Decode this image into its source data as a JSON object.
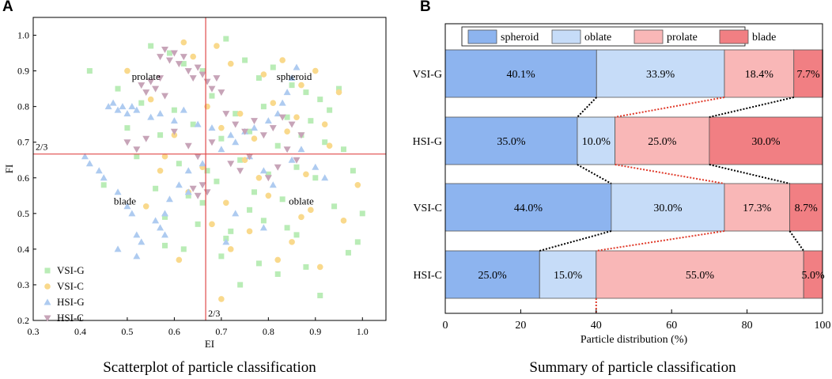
{
  "panels": {
    "a_letter": "A",
    "b_letter": "B"
  },
  "captions": {
    "a": "Scatterplot of particle classification",
    "b": "Summary of particle classification"
  },
  "colors": {
    "vsi_g": "#b9ecb6",
    "vsi_c": "#f9d98c",
    "hsi_g": "#aecbf0",
    "hsi_c": "#c7a4b8",
    "spheroid": "#8db4ef",
    "oblate": "#c6dcf8",
    "prolate": "#f9b7b7",
    "blade": "#f17f83",
    "divider": "#e04a4a"
  },
  "chart_data": [
    {
      "type": "scatter",
      "title": "Scatterplot of particle classification",
      "xlabel": "EI",
      "ylabel": "FI",
      "xlim": [
        0.3,
        1.05
      ],
      "ylim": [
        0.2,
        1.05
      ],
      "xticks": [
        "0.3",
        "0.4",
        "0.5",
        "0.6",
        "0.7",
        "0.8",
        "0.9",
        "1.0"
      ],
      "yticks": [
        "0.2",
        "0.3",
        "0.4",
        "0.5",
        "0.6",
        "0.7",
        "0.8",
        "0.9",
        "1.0"
      ],
      "threshold_x": 0.6667,
      "threshold_y": 0.6667,
      "threshold_x_label": "2/3",
      "threshold_y_label": "2/3",
      "regions": [
        {
          "name": "prolate",
          "x": 0.54,
          "y": 0.875
        },
        {
          "name": "spheroid",
          "x": 0.855,
          "y": 0.875
        },
        {
          "name": "blade",
          "x": 0.495,
          "y": 0.525
        },
        {
          "name": "oblate",
          "x": 0.87,
          "y": 0.525
        }
      ],
      "series": [
        {
          "name": "VSI-G",
          "marker": "square",
          "x": [
            0.55,
            0.59,
            0.62,
            0.66,
            0.71,
            0.75,
            0.78,
            0.81,
            0.85,
            0.88,
            0.91,
            0.95,
            0.53,
            0.6,
            0.68,
            0.73,
            0.79,
            0.84,
            0.89,
            0.93,
            0.5,
            0.57,
            0.64,
            0.7,
            0.76,
            0.82,
            0.87,
            0.92,
            0.96,
            0.52,
            0.61,
            0.67,
            0.74,
            0.8,
            0.86,
            0.9,
            0.98,
            0.45,
            0.56,
            0.63,
            0.69,
            0.77,
            0.83,
            0.94,
            1.0,
            0.58,
            0.65,
            0.72,
            0.79,
            0.86,
            0.99,
            0.62,
            0.7,
            0.78,
            0.88,
            0.58,
            0.71,
            0.84,
            0.42,
            0.48,
            0.74,
            0.82,
            0.91,
            0.66,
            0.76,
            0.97
          ],
          "y": [
            0.97,
            0.95,
            0.92,
            0.9,
            0.99,
            0.93,
            0.88,
            0.91,
            0.86,
            0.84,
            0.82,
            0.85,
            0.81,
            0.79,
            0.83,
            0.78,
            0.8,
            0.77,
            0.76,
            0.79,
            0.74,
            0.72,
            0.75,
            0.71,
            0.73,
            0.69,
            0.72,
            0.7,
            0.68,
            0.66,
            0.64,
            0.62,
            0.65,
            0.61,
            0.63,
            0.6,
            0.62,
            0.58,
            0.57,
            0.55,
            0.59,
            0.56,
            0.54,
            0.52,
            0.5,
            0.49,
            0.47,
            0.45,
            0.48,
            0.44,
            0.42,
            0.4,
            0.38,
            0.36,
            0.35,
            0.41,
            0.43,
            0.46,
            0.9,
            0.85,
            0.3,
            0.33,
            0.27,
            0.53,
            0.51,
            0.39
          ]
        },
        {
          "name": "VSI-C",
          "marker": "circle",
          "x": [
            0.5,
            0.62,
            0.64,
            0.69,
            0.72,
            0.79,
            0.83,
            0.87,
            0.9,
            0.95,
            0.55,
            0.67,
            0.74,
            0.81,
            0.86,
            0.92,
            0.6,
            0.7,
            0.77,
            0.84,
            0.93,
            0.58,
            0.66,
            0.75,
            0.88,
            0.99,
            0.63,
            0.71,
            0.8,
            0.89,
            0.96,
            0.54,
            0.68,
            0.76,
            0.85,
            0.61,
            0.72,
            0.82,
            0.91,
            0.57,
            0.7,
            0.78,
            0.87
          ],
          "y": [
            0.9,
            0.98,
            0.94,
            0.97,
            0.92,
            0.89,
            0.93,
            0.86,
            0.9,
            0.84,
            0.82,
            0.8,
            0.78,
            0.81,
            0.77,
            0.75,
            0.72,
            0.74,
            0.71,
            0.73,
            0.69,
            0.66,
            0.63,
            0.65,
            0.61,
            0.58,
            0.56,
            0.53,
            0.55,
            0.51,
            0.48,
            0.52,
            0.47,
            0.45,
            0.42,
            0.37,
            0.4,
            0.37,
            0.35,
            0.62,
            0.26,
            0.6,
            0.49
          ]
        },
        {
          "name": "HSI-G",
          "marker": "triangle-up",
          "x": [
            0.46,
            0.47,
            0.48,
            0.49,
            0.5,
            0.51,
            0.52,
            0.55,
            0.57,
            0.6,
            0.62,
            0.65,
            0.68,
            0.72,
            0.75,
            0.77,
            0.8,
            0.82,
            0.83,
            0.84,
            0.85,
            0.86,
            0.41,
            0.42,
            0.44,
            0.45,
            0.48,
            0.5,
            0.51,
            0.52,
            0.53,
            0.56,
            0.57,
            0.58,
            0.59,
            0.61,
            0.63,
            0.66,
            0.7,
            0.73,
            0.76,
            0.79,
            0.81,
            0.85,
            0.87,
            0.9,
            0.92,
            0.48,
            0.52,
            0.58,
            0.63,
            0.71,
            0.73,
            0.79
          ],
          "y": [
            0.8,
            0.81,
            0.79,
            0.8,
            0.78,
            0.8,
            0.79,
            0.77,
            0.78,
            0.76,
            0.79,
            0.75,
            0.74,
            0.72,
            0.73,
            0.74,
            0.76,
            0.78,
            0.81,
            0.84,
            0.88,
            0.91,
            0.66,
            0.64,
            0.62,
            0.6,
            0.56,
            0.52,
            0.5,
            0.44,
            0.42,
            0.48,
            0.46,
            0.5,
            0.54,
            0.58,
            0.62,
            0.64,
            0.68,
            0.7,
            0.66,
            0.62,
            0.58,
            0.65,
            0.68,
            0.63,
            0.6,
            0.4,
            0.38,
            0.44,
            0.56,
            0.42,
            0.5,
            0.46
          ]
        },
        {
          "name": "HSI-C",
          "marker": "triangle-down",
          "x": [
            0.57,
            0.58,
            0.59,
            0.6,
            0.61,
            0.62,
            0.63,
            0.64,
            0.65,
            0.66,
            0.53,
            0.54,
            0.55,
            0.56,
            0.57,
            0.58,
            0.67,
            0.68,
            0.69,
            0.7,
            0.71,
            0.73,
            0.75,
            0.77,
            0.79,
            0.81,
            0.83,
            0.85,
            0.87,
            0.5,
            0.52,
            0.54,
            0.6,
            0.63,
            0.65,
            0.68,
            0.72,
            0.74,
            0.76,
            0.8,
            0.82,
            0.84,
            0.86,
            0.64,
            0.65,
            0.66,
            0.67
          ],
          "y": [
            0.94,
            0.96,
            0.93,
            0.95,
            0.92,
            0.94,
            0.9,
            0.88,
            0.91,
            0.89,
            0.86,
            0.84,
            0.87,
            0.85,
            0.88,
            0.83,
            0.87,
            0.85,
            0.88,
            0.84,
            0.78,
            0.75,
            0.73,
            0.76,
            0.72,
            0.74,
            0.77,
            0.75,
            0.72,
            0.7,
            0.68,
            0.71,
            0.73,
            0.69,
            0.66,
            0.7,
            0.64,
            0.62,
            0.66,
            0.6,
            0.63,
            0.68,
            0.65,
            0.57,
            0.55,
            0.58,
            0.56
          ]
        }
      ],
      "legend": [
        "VSI-G",
        "VSI-C",
        "HSI-G",
        "HSI-C"
      ]
    },
    {
      "type": "stacked-bar-horizontal",
      "title": "Summary of particle classification",
      "xlabel": "Particle distribution (%)",
      "xlim": [
        0,
        100
      ],
      "xticks": [
        "0",
        "20",
        "40",
        "60",
        "80",
        "100"
      ],
      "legend": [
        "spheroid",
        "oblate",
        "prolate",
        "blade"
      ],
      "categories": [
        "VSI-G",
        "HSI-G",
        "VSI-C",
        "HSI-C"
      ],
      "series": [
        {
          "name": "spheroid",
          "values": [
            40.1,
            35.0,
            44.0,
            25.0
          ],
          "labels": [
            "40.1%",
            "35.0%",
            "44.0%",
            "25.0%"
          ]
        },
        {
          "name": "oblate",
          "values": [
            33.9,
            10.0,
            30.0,
            15.0
          ],
          "labels": [
            "33.9%",
            "10.0%",
            "30.0%",
            "15.0%"
          ]
        },
        {
          "name": "prolate",
          "values": [
            18.4,
            25.0,
            17.3,
            55.0
          ],
          "labels": [
            "18.4%",
            "25.0%",
            "17.3%",
            "55.0%"
          ]
        },
        {
          "name": "blade",
          "values": [
            7.7,
            30.0,
            8.7,
            5.0
          ],
          "labels": [
            "7.7%",
            "30.0%",
            "8.7%",
            "5.0%"
          ]
        }
      ]
    }
  ]
}
